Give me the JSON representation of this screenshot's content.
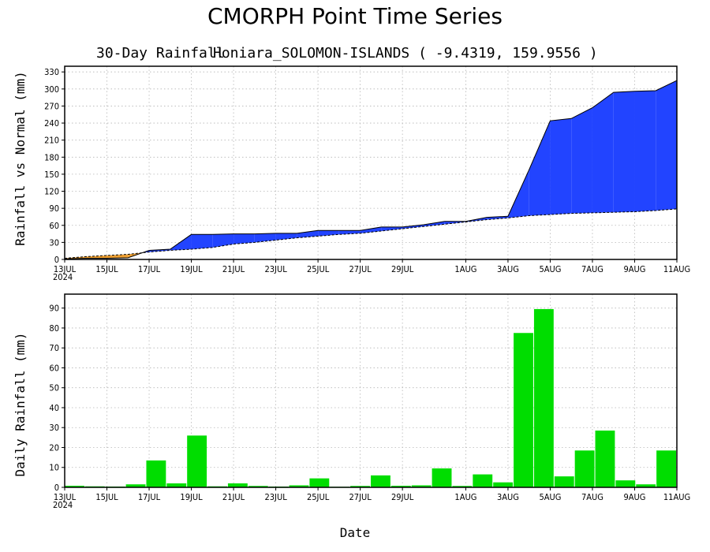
{
  "figure": {
    "title": "CMORPH Point Time Series",
    "subtitle_left": "30-Day Rainfall",
    "subtitle_right": "Honiara_SOLOMON-ISLANDS ( -9.4319, 159.9556 )",
    "xlabel": "Date",
    "year_label": "2024"
  },
  "colors": {
    "above_normal": "#2244ff",
    "below_normal": "#f0a030",
    "daily_bar": "#00dd00",
    "grid": "#b5b5b5"
  },
  "chart_data": [
    {
      "type": "area",
      "title": "30-Day Rainfall",
      "ylabel": "Rainfall vs Normal (mm)",
      "ylim": [
        0,
        340
      ],
      "yticks": [
        0,
        30,
        60,
        90,
        120,
        150,
        180,
        210,
        240,
        270,
        300,
        330
      ],
      "xticks": [
        "13JUL",
        "15JUL",
        "17JUL",
        "19JUL",
        "21JUL",
        "23JUL",
        "25JUL",
        "27JUL",
        "29JUL",
        "1AUG",
        "3AUG",
        "5AUG",
        "7AUG",
        "9AUG",
        "11AUG"
      ],
      "x": [
        "13JUL",
        "14JUL",
        "15JUL",
        "16JUL",
        "17JUL",
        "18JUL",
        "19JUL",
        "20JUL",
        "21JUL",
        "22JUL",
        "23JUL",
        "24JUL",
        "25JUL",
        "26JUL",
        "27JUL",
        "28JUL",
        "29JUL",
        "30JUL",
        "31JUL",
        "1AUG",
        "2AUG",
        "3AUG",
        "4AUG",
        "5AUG",
        "6AUG",
        "7AUG",
        "8AUG",
        "9AUG",
        "10AUG",
        "11AUG"
      ],
      "grid": true,
      "series": [
        {
          "name": "",
          "values": [
            1,
            2,
            2,
            3,
            16,
            18,
            44,
            44,
            45,
            45,
            46,
            46,
            51,
            51,
            51,
            57,
            57,
            61,
            67,
            67,
            74,
            76,
            158,
            244,
            248,
            267,
            294,
            296,
            297,
            315
          ]
        },
        {
          "name": "",
          "values": [
            2,
            5,
            7,
            9,
            13,
            16,
            18,
            21,
            27,
            30,
            34,
            38,
            41,
            44,
            46,
            50,
            54,
            58,
            62,
            66,
            70,
            73,
            77,
            79,
            81,
            82,
            83,
            84,
            86,
            89
          ]
        }
      ]
    },
    {
      "type": "bar",
      "ylabel": "Daily Rainfall (mm)",
      "ylim": [
        0,
        97
      ],
      "yticks": [
        0,
        10,
        20,
        30,
        40,
        50,
        60,
        70,
        80,
        90
      ],
      "xticks": [
        "13JUL",
        "15JUL",
        "17JUL",
        "19JUL",
        "21JUL",
        "23JUL",
        "25JUL",
        "27JUL",
        "29JUL",
        "1AUG",
        "3AUG",
        "5AUG",
        "7AUG",
        "9AUG",
        "11AUG"
      ],
      "categories": [
        "13JUL",
        "14JUL",
        "15JUL",
        "16JUL",
        "17JUL",
        "18JUL",
        "19JUL",
        "20JUL",
        "21JUL",
        "22JUL",
        "23JUL",
        "24JUL",
        "25JUL",
        "26JUL",
        "27JUL",
        "28JUL",
        "29JUL",
        "30JUL",
        "31JUL",
        "1AUG",
        "2AUG",
        "3AUG",
        "4AUG",
        "5AUG",
        "6AUG",
        "7AUG",
        "8AUG",
        "9AUG",
        "10AUG",
        "11AUG"
      ],
      "values": [
        0.8,
        0.5,
        0.4,
        1.5,
        13.5,
        2,
        26,
        0.5,
        2,
        0.7,
        0.4,
        1,
        4.5,
        0.3,
        0.7,
        6,
        0.8,
        1,
        9.5,
        0.7,
        6.5,
        2.5,
        77.5,
        89.5,
        5.5,
        18.5,
        28.5,
        3.5,
        1.5,
        18.5
      ],
      "grid": true
    }
  ]
}
